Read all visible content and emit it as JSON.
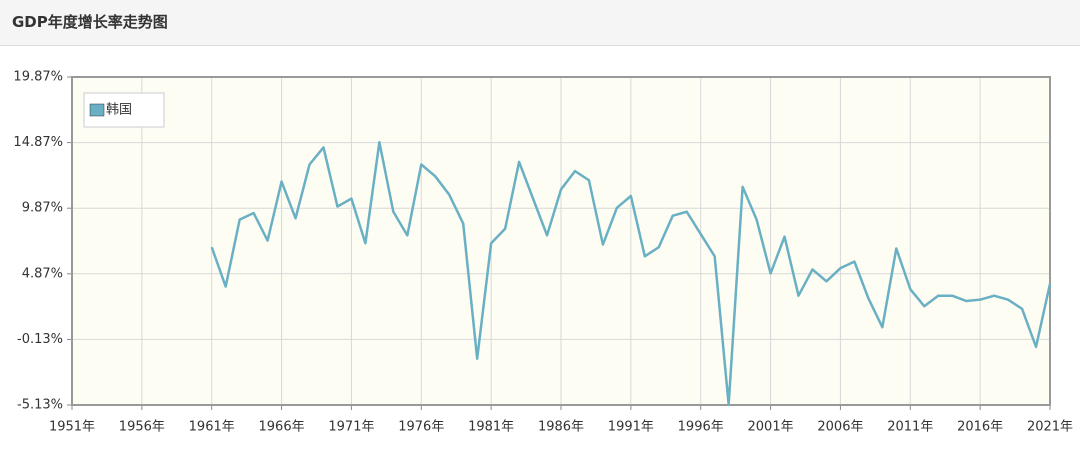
{
  "chart_data": {
    "type": "line",
    "title": "GDP年度增长率走势图",
    "x": [
      1961,
      1962,
      1963,
      1964,
      1965,
      1966,
      1967,
      1968,
      1969,
      1970,
      1971,
      1972,
      1973,
      1974,
      1975,
      1976,
      1977,
      1978,
      1979,
      1980,
      1981,
      1982,
      1983,
      1984,
      1985,
      1986,
      1987,
      1988,
      1989,
      1990,
      1991,
      1992,
      1993,
      1994,
      1995,
      1996,
      1997,
      1998,
      1999,
      2000,
      2001,
      2002,
      2003,
      2004,
      2005,
      2006,
      2007,
      2008,
      2009,
      2010,
      2011,
      2012,
      2013,
      2014,
      2015,
      2016,
      2017,
      2018,
      2019,
      2020,
      2021
    ],
    "series": [
      {
        "name": "韩国",
        "color": "#6ab0c4",
        "values": [
          6.9,
          3.9,
          9.0,
          9.5,
          7.4,
          11.9,
          9.1,
          13.2,
          14.5,
          10.0,
          10.6,
          7.2,
          14.9,
          9.6,
          7.8,
          13.2,
          12.3,
          10.9,
          8.7,
          -1.6,
          7.2,
          8.3,
          13.4,
          10.6,
          7.8,
          11.3,
          12.7,
          12.0,
          7.1,
          9.9,
          10.8,
          6.2,
          6.9,
          9.3,
          9.6,
          7.9,
          6.2,
          -5.1,
          11.5,
          9.0,
          4.9,
          7.7,
          3.2,
          5.2,
          4.3,
          5.3,
          5.8,
          3.0,
          0.8,
          6.8,
          3.7,
          2.4,
          3.2,
          3.2,
          2.8,
          2.9,
          3.2,
          2.9,
          2.2,
          -0.7,
          4.1
        ]
      }
    ],
    "xlim": [
      1951,
      2021
    ],
    "xticks": [
      {
        "value": 1951,
        "label": "1951年"
      },
      {
        "value": 1956,
        "label": "1956年"
      },
      {
        "value": 1961,
        "label": "1961年"
      },
      {
        "value": 1966,
        "label": "1966年"
      },
      {
        "value": 1971,
        "label": "1971年"
      },
      {
        "value": 1976,
        "label": "1976年"
      },
      {
        "value": 1981,
        "label": "1981年"
      },
      {
        "value": 1986,
        "label": "1986年"
      },
      {
        "value": 1991,
        "label": "1991年"
      },
      {
        "value": 1996,
        "label": "1996年"
      },
      {
        "value": 2001,
        "label": "2001年"
      },
      {
        "value": 2006,
        "label": "2006年"
      },
      {
        "value": 2011,
        "label": "2011年"
      },
      {
        "value": 2016,
        "label": "2016年"
      },
      {
        "value": 2021,
        "label": "2021年"
      }
    ],
    "ylim": [
      -5.13,
      19.87
    ],
    "yticks": [
      {
        "value": -5.13,
        "label": "-5.13%"
      },
      {
        "value": -0.13,
        "label": "-0.13%"
      },
      {
        "value": 4.87,
        "label": "4.87%"
      },
      {
        "value": 9.87,
        "label": "9.87%"
      },
      {
        "value": 14.87,
        "label": "14.87%"
      },
      {
        "value": 19.87,
        "label": "19.87%"
      }
    ],
    "grid": true,
    "legend": "top-left"
  }
}
